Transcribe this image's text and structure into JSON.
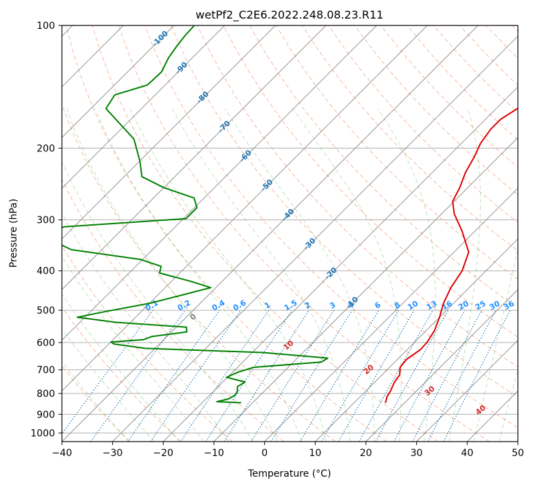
{
  "chart_data": {
    "type": "line",
    "title": "wetPf2_C2E6.2022.248.08.23.R11",
    "xlabel": "Temperature (°C)",
    "ylabel": "Pressure (hPa)",
    "xlim": [
      -40,
      50
    ],
    "ylim": [
      1050,
      100
    ],
    "y_scale": "log",
    "grid": true,
    "x_ticks": [
      -40,
      -30,
      -20,
      -10,
      0,
      10,
      20,
      30,
      40,
      50
    ],
    "x_tick_labels": [
      "−40",
      "−30",
      "−20",
      "−10",
      "0",
      "10",
      "20",
      "30",
      "40",
      "50"
    ],
    "y_ticks": [
      100,
      200,
      300,
      400,
      500,
      600,
      700,
      800,
      900,
      1000
    ],
    "y_tick_labels": [
      "100",
      "200",
      "300",
      "400",
      "500",
      "600",
      "700",
      "800",
      "900",
      "1000"
    ],
    "isotherm_labels": [
      {
        "t": -100,
        "text": "-100"
      },
      {
        "t": -90,
        "text": "-90"
      },
      {
        "t": -80,
        "text": "-80"
      },
      {
        "t": -70,
        "text": "-70"
      },
      {
        "t": -60,
        "text": "-60"
      },
      {
        "t": -50,
        "text": "-50"
      },
      {
        "t": -40,
        "text": "-40"
      },
      {
        "t": -30,
        "text": "-30"
      },
      {
        "t": -20,
        "text": "-20"
      },
      {
        "t": -10,
        "text": "-10"
      }
    ],
    "mixing_ratio_labels": [
      "0.1",
      "0.2",
      "0.4",
      "0.6",
      "1",
      "1.5",
      "2",
      "3",
      "4",
      "6",
      "8",
      "10",
      "13",
      "16",
      "20",
      "25",
      "30",
      "36"
    ],
    "moist_adiabat_labels": [
      {
        "t": 0,
        "text": "0",
        "color": "#808080"
      },
      {
        "t": 10,
        "text": "10",
        "color": "#d62728"
      },
      {
        "t": 20,
        "text": "20",
        "color": "#d62728"
      },
      {
        "t": 30,
        "text": "30",
        "color": "#d62728"
      },
      {
        "t": 40,
        "text": "40",
        "color": "#d62728"
      }
    ],
    "series": [
      {
        "color": "#dd0000",
        "points": [
          [
            844,
            16.2
          ],
          [
            830,
            15.8
          ],
          [
            815,
            15.3
          ],
          [
            790,
            14.9
          ],
          [
            750,
            13.9
          ],
          [
            720,
            13.5
          ],
          [
            690,
            12.1
          ],
          [
            660,
            11.8
          ],
          [
            625,
            12.6
          ],
          [
            600,
            12.5
          ],
          [
            560,
            11.6
          ],
          [
            520,
            10.0
          ],
          [
            480,
            8.0
          ],
          [
            440,
            6.4
          ],
          [
            400,
            5.3
          ],
          [
            360,
            2.9
          ],
          [
            320,
            -2.5
          ],
          [
            290,
            -7.5
          ],
          [
            270,
            -10.3
          ],
          [
            250,
            -11.6
          ],
          [
            230,
            -13.4
          ],
          [
            210,
            -14.8
          ],
          [
            195,
            -16.2
          ],
          [
            180,
            -17.0
          ],
          [
            170,
            -17.0
          ],
          [
            160,
            -15.8
          ],
          [
            150,
            -14.3
          ],
          [
            140,
            -11.8
          ],
          [
            130,
            -11.3
          ],
          [
            122,
            -11.4
          ],
          [
            115,
            -11.4
          ],
          [
            108,
            -11.3
          ],
          [
            100,
            -11.0
          ]
        ]
      },
      {
        "color": "#008000",
        "points": [
          [
            843,
            -12.3
          ],
          [
            838,
            -17.3
          ],
          [
            825,
            -15.5
          ],
          [
            808,
            -15.0
          ],
          [
            790,
            -15.3
          ],
          [
            770,
            -16.2
          ],
          [
            750,
            -15.6
          ],
          [
            730,
            -20.2
          ],
          [
            710,
            -19.0
          ],
          [
            690,
            -16.8
          ],
          [
            670,
            -4.5
          ],
          [
            655,
            -4.0
          ],
          [
            635,
            -17.7
          ],
          [
            620,
            -42.0
          ],
          [
            605,
            -49.0
          ],
          [
            598,
            -50.0
          ],
          [
            590,
            -44.0
          ],
          [
            580,
            -43.0
          ],
          [
            565,
            -37.0
          ],
          [
            550,
            -38.0
          ],
          [
            535,
            -53.0
          ],
          [
            520,
            -61.5
          ],
          [
            505,
            -57.5
          ],
          [
            480,
            -49.8
          ],
          [
            440,
            -41.0
          ],
          [
            425,
            -46.0
          ],
          [
            405,
            -54.0
          ],
          [
            390,
            -55.0
          ],
          [
            375,
            -60.5
          ],
          [
            355,
            -76.0
          ],
          [
            330,
            -84.0
          ],
          [
            312,
            -82.0
          ],
          [
            298,
            -59.5
          ],
          [
            280,
            -59.5
          ],
          [
            265,
            -62.0
          ],
          [
            250,
            -70.0
          ],
          [
            235,
            -76.5
          ],
          [
            215,
            -80.0
          ],
          [
            190,
            -85.5
          ],
          [
            175,
            -91.0
          ],
          [
            160,
            -97.0
          ],
          [
            148,
            -98.0
          ],
          [
            140,
            -93.5
          ],
          [
            130,
            -93.3
          ],
          [
            120,
            -94.7
          ],
          [
            112,
            -95.4
          ],
          [
            106,
            -95.8
          ],
          [
            100,
            -96.0
          ]
        ]
      }
    ]
  }
}
